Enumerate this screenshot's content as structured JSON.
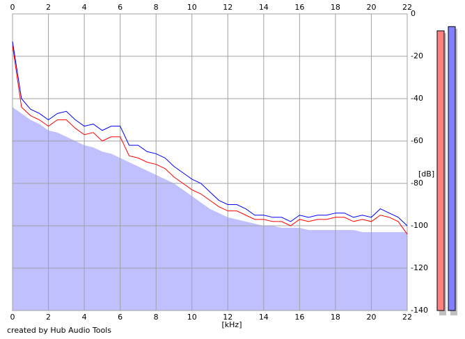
{
  "chart_data": {
    "type": "line",
    "xlabel": "[kHz]",
    "ylabel": "[dB]",
    "footer": "created by Hub Audio Tools",
    "xlim": [
      0,
      22
    ],
    "xticks": [
      0,
      2,
      4,
      6,
      8,
      10,
      12,
      14,
      16,
      18,
      20,
      22
    ],
    "ylim": [
      -140,
      0
    ],
    "yticks": [
      0,
      -20,
      -40,
      -60,
      -80,
      -100,
      -120,
      -140
    ],
    "grid": true,
    "area_color": "#c0c0ff",
    "x": [
      0,
      0.5,
      1,
      1.5,
      2,
      2.5,
      3,
      3.5,
      4,
      4.5,
      5,
      5.5,
      6,
      6.5,
      7,
      7.5,
      8,
      8.5,
      9,
      9.5,
      10,
      10.5,
      11,
      11.5,
      12,
      12.5,
      13,
      13.5,
      14,
      14.5,
      15,
      15.5,
      16,
      16.5,
      17,
      17.5,
      18,
      18.5,
      19,
      19.5,
      20,
      20.5,
      21,
      21.5,
      22
    ],
    "area": [
      -44,
      -47,
      -50,
      -52,
      -55,
      -56,
      -58,
      -60,
      -62,
      -63,
      -65,
      -66,
      -68,
      -70,
      -72,
      -74,
      -76,
      -78,
      -80,
      -83,
      -86,
      -89,
      -92,
      -94,
      -96,
      -97,
      -98,
      -99,
      -100,
      -100,
      -101,
      -101,
      -101,
      -102,
      -102,
      -102,
      -102,
      -102,
      -102,
      -103,
      -103,
      -103,
      -103,
      -103,
      -103
    ],
    "series": [
      {
        "color": "#ff0000",
        "values": [
          -15,
          -44,
          -48,
          -50,
          -53,
          -50,
          -50,
          -54,
          -57,
          -56,
          -60,
          -58,
          -58,
          -67,
          -68,
          -70,
          -71,
          -73,
          -77,
          -80,
          -83,
          -85,
          -88,
          -91,
          -93,
          -93,
          -95,
          -97,
          -97,
          -98,
          -98,
          -100,
          -97,
          -98,
          -97,
          -97,
          -96,
          -96,
          -98,
          -97,
          -98,
          -95,
          -96,
          -98,
          -104
        ]
      },
      {
        "color": "#0000ff",
        "values": [
          -13,
          -40,
          -45,
          -47,
          -50,
          -47,
          -46,
          -50,
          -53,
          -52,
          -55,
          -53,
          -53,
          -62,
          -62,
          -65,
          -66,
          -68,
          -72,
          -75,
          -78,
          -80,
          -84,
          -88,
          -90,
          -90,
          -92,
          -95,
          -95,
          -96,
          -96,
          -98,
          -95,
          -96,
          -95,
          -95,
          -94,
          -94,
          -96,
          -95,
          -96,
          -92,
          -94,
          -96,
          -100
        ]
      }
    ],
    "meters": [
      {
        "color": "#ff8080",
        "value": -8
      },
      {
        "color": "#8080ff",
        "value": -6
      }
    ]
  }
}
